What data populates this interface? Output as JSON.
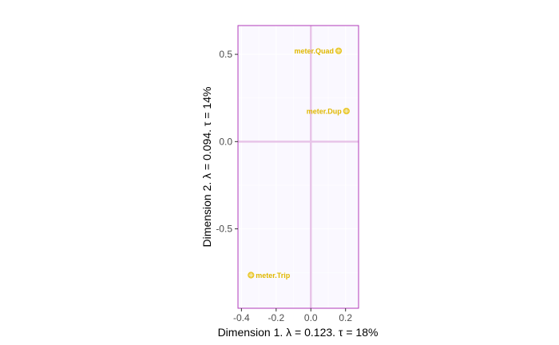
{
  "chart_data": {
    "type": "scatter",
    "xlabel": "Dimension 1.   λ = 0.123.  τ = 18%",
    "ylabel": "Dimension 2.   λ = 0.094.  τ = 14%",
    "xlim": [
      -0.42,
      0.275
    ],
    "ylim": [
      -0.955,
      0.665
    ],
    "xticks": [
      -0.4,
      -0.2,
      0.0,
      0.2
    ],
    "xtick_labels": [
      "-0.4",
      "-0.2",
      "0.0",
      "0.2"
    ],
    "yticks": [
      0.5,
      0.0,
      -0.5
    ],
    "ytick_labels": [
      "0.5",
      "0.0",
      "-0.5"
    ],
    "grid": true,
    "reference_lines": {
      "x": 0,
      "y": 0
    },
    "colors": {
      "panel_background": "#faf8ff",
      "panel_border": "#b03ab8",
      "reference_line": "#e8c4e8",
      "grid": "#ffffff",
      "point": "#e8c41c",
      "label": "#e0b800"
    },
    "points": [
      {
        "label": "meter.Quad",
        "x": 0.16,
        "y": 0.52,
        "label_side": "left"
      },
      {
        "label": "meter.Dup",
        "x": 0.205,
        "y": 0.175,
        "label_side": "left"
      },
      {
        "label": "meter.Trip",
        "x": -0.345,
        "y": -0.765,
        "label_side": "right"
      }
    ]
  }
}
